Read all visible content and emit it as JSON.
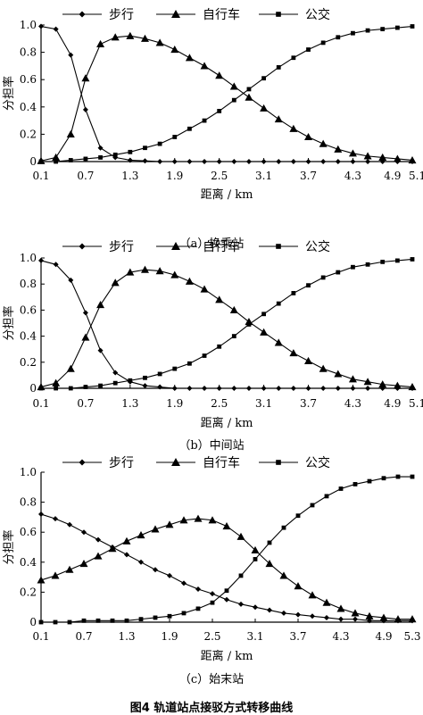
{
  "figure_title": "图4  轨道站点接驳方式转移曲线",
  "panel_captions": [
    "（a）换乘站",
    "（b）中间站",
    "（c）始末站"
  ],
  "legend": [
    "步行",
    "自行车",
    "公交"
  ],
  "ylabel": "分担率",
  "xlabel": "距离 / km",
  "chart_data": [
    {
      "type": "line",
      "caption": "（a）换乘站",
      "xlabel": "距离 / km",
      "ylabel": "分担率",
      "xlim": [
        0.1,
        5.1
      ],
      "ylim": [
        0,
        1.0
      ],
      "xticks": [
        "0.1",
        "0.7",
        "1.3",
        "1.9",
        "2.5",
        "3.1",
        "3.7",
        "4.3",
        "4.9",
        "5.1"
      ],
      "yticks": [
        "0",
        "0.2",
        "0.4",
        "0.6",
        "0.8",
        "1.0"
      ],
      "legend_position": "top",
      "x": [
        0.1,
        0.3,
        0.5,
        0.7,
        0.9,
        1.1,
        1.3,
        1.5,
        1.7,
        1.9,
        2.1,
        2.3,
        2.5,
        2.7,
        2.9,
        3.1,
        3.3,
        3.5,
        3.7,
        3.9,
        4.1,
        4.3,
        4.5,
        4.7,
        4.9,
        5.1
      ],
      "series": [
        {
          "name": "步行",
          "marker": "diamond",
          "values": [
            0.99,
            0.97,
            0.78,
            0.38,
            0.1,
            0.03,
            0.01,
            0.005,
            0,
            0,
            0,
            0,
            0,
            0,
            0,
            0,
            0,
            0,
            0,
            0,
            0,
            0,
            0,
            0,
            0,
            0
          ]
        },
        {
          "name": "自行车",
          "marker": "triangle",
          "values": [
            0.005,
            0.03,
            0.2,
            0.61,
            0.86,
            0.91,
            0.92,
            0.9,
            0.87,
            0.82,
            0.76,
            0.7,
            0.63,
            0.55,
            0.47,
            0.39,
            0.31,
            0.24,
            0.18,
            0.13,
            0.09,
            0.06,
            0.04,
            0.03,
            0.02,
            0.01
          ]
        },
        {
          "name": "公交",
          "marker": "square",
          "values": [
            0,
            0,
            0.01,
            0.02,
            0.03,
            0.05,
            0.07,
            0.1,
            0.13,
            0.18,
            0.24,
            0.3,
            0.37,
            0.45,
            0.53,
            0.61,
            0.69,
            0.76,
            0.82,
            0.87,
            0.91,
            0.94,
            0.96,
            0.97,
            0.98,
            0.99
          ]
        }
      ]
    },
    {
      "type": "line",
      "caption": "（b）中间站",
      "xlabel": "距离 / km",
      "ylabel": "分担率",
      "xlim": [
        0.1,
        5.1
      ],
      "ylim": [
        0,
        1.0
      ],
      "xticks": [
        "0.1",
        "0.7",
        "1.3",
        "1.9",
        "2.5",
        "3.1",
        "3.7",
        "4.3",
        "4.9",
        "5.1"
      ],
      "yticks": [
        "0",
        "0.2",
        "0.4",
        "0.6",
        "0.8",
        "1.0"
      ],
      "legend_position": "top",
      "x": [
        0.1,
        0.3,
        0.5,
        0.7,
        0.9,
        1.1,
        1.3,
        1.5,
        1.7,
        1.9,
        2.1,
        2.3,
        2.5,
        2.7,
        2.9,
        3.1,
        3.3,
        3.5,
        3.7,
        3.9,
        4.1,
        4.3,
        4.5,
        4.7,
        4.9,
        5.1
      ],
      "series": [
        {
          "name": "步行",
          "marker": "diamond",
          "values": [
            0.98,
            0.95,
            0.83,
            0.58,
            0.29,
            0.12,
            0.05,
            0.02,
            0.01,
            0,
            0,
            0,
            0,
            0,
            0,
            0,
            0,
            0,
            0,
            0,
            0,
            0,
            0,
            0,
            0,
            0
          ]
        },
        {
          "name": "自行车",
          "marker": "triangle",
          "values": [
            0.01,
            0.04,
            0.15,
            0.39,
            0.64,
            0.81,
            0.89,
            0.91,
            0.9,
            0.87,
            0.82,
            0.76,
            0.68,
            0.6,
            0.51,
            0.43,
            0.35,
            0.27,
            0.21,
            0.15,
            0.11,
            0.07,
            0.05,
            0.03,
            0.02,
            0.01
          ]
        },
        {
          "name": "公交",
          "marker": "square",
          "values": [
            0,
            0,
            0,
            0.01,
            0.02,
            0.04,
            0.06,
            0.08,
            0.11,
            0.15,
            0.19,
            0.25,
            0.32,
            0.4,
            0.49,
            0.57,
            0.65,
            0.73,
            0.79,
            0.85,
            0.89,
            0.93,
            0.95,
            0.97,
            0.98,
            0.99
          ]
        }
      ]
    },
    {
      "type": "line",
      "caption": "（c）始末站",
      "xlabel": "距离 / km",
      "ylabel": "分担率",
      "xlim": [
        0.1,
        5.3
      ],
      "ylim": [
        0,
        1.0
      ],
      "xticks": [
        "0.1",
        "0.7",
        "1.3",
        "1.9",
        "2.5",
        "3.1",
        "3.7",
        "4.3",
        "4.9",
        "5.3"
      ],
      "yticks": [
        "0",
        "0.2",
        "0.4",
        "0.6",
        "0.8",
        "1.0"
      ],
      "legend_position": "top",
      "x": [
        0.1,
        0.3,
        0.5,
        0.7,
        0.9,
        1.1,
        1.3,
        1.5,
        1.7,
        1.9,
        2.1,
        2.3,
        2.5,
        2.7,
        2.9,
        3.1,
        3.3,
        3.5,
        3.7,
        3.9,
        4.1,
        4.3,
        4.5,
        4.7,
        4.9,
        5.1,
        5.3
      ],
      "series": [
        {
          "name": "步行",
          "marker": "diamond",
          "values": [
            0.72,
            0.69,
            0.65,
            0.6,
            0.55,
            0.5,
            0.45,
            0.4,
            0.35,
            0.31,
            0.26,
            0.22,
            0.19,
            0.15,
            0.12,
            0.1,
            0.08,
            0.06,
            0.05,
            0.04,
            0.03,
            0.02,
            0.02,
            0.01,
            0.01,
            0.01,
            0.01
          ]
        },
        {
          "name": "自行车",
          "marker": "triangle",
          "values": [
            0.28,
            0.31,
            0.35,
            0.39,
            0.44,
            0.49,
            0.54,
            0.58,
            0.62,
            0.65,
            0.68,
            0.69,
            0.68,
            0.64,
            0.57,
            0.48,
            0.39,
            0.31,
            0.24,
            0.18,
            0.13,
            0.09,
            0.06,
            0.04,
            0.03,
            0.02,
            0.02
          ]
        },
        {
          "name": "公交",
          "marker": "square",
          "values": [
            0,
            0,
            0,
            0.01,
            0.01,
            0.01,
            0.01,
            0.02,
            0.03,
            0.04,
            0.06,
            0.09,
            0.13,
            0.21,
            0.31,
            0.42,
            0.53,
            0.63,
            0.71,
            0.78,
            0.84,
            0.89,
            0.92,
            0.94,
            0.96,
            0.97,
            0.97
          ]
        }
      ]
    }
  ]
}
